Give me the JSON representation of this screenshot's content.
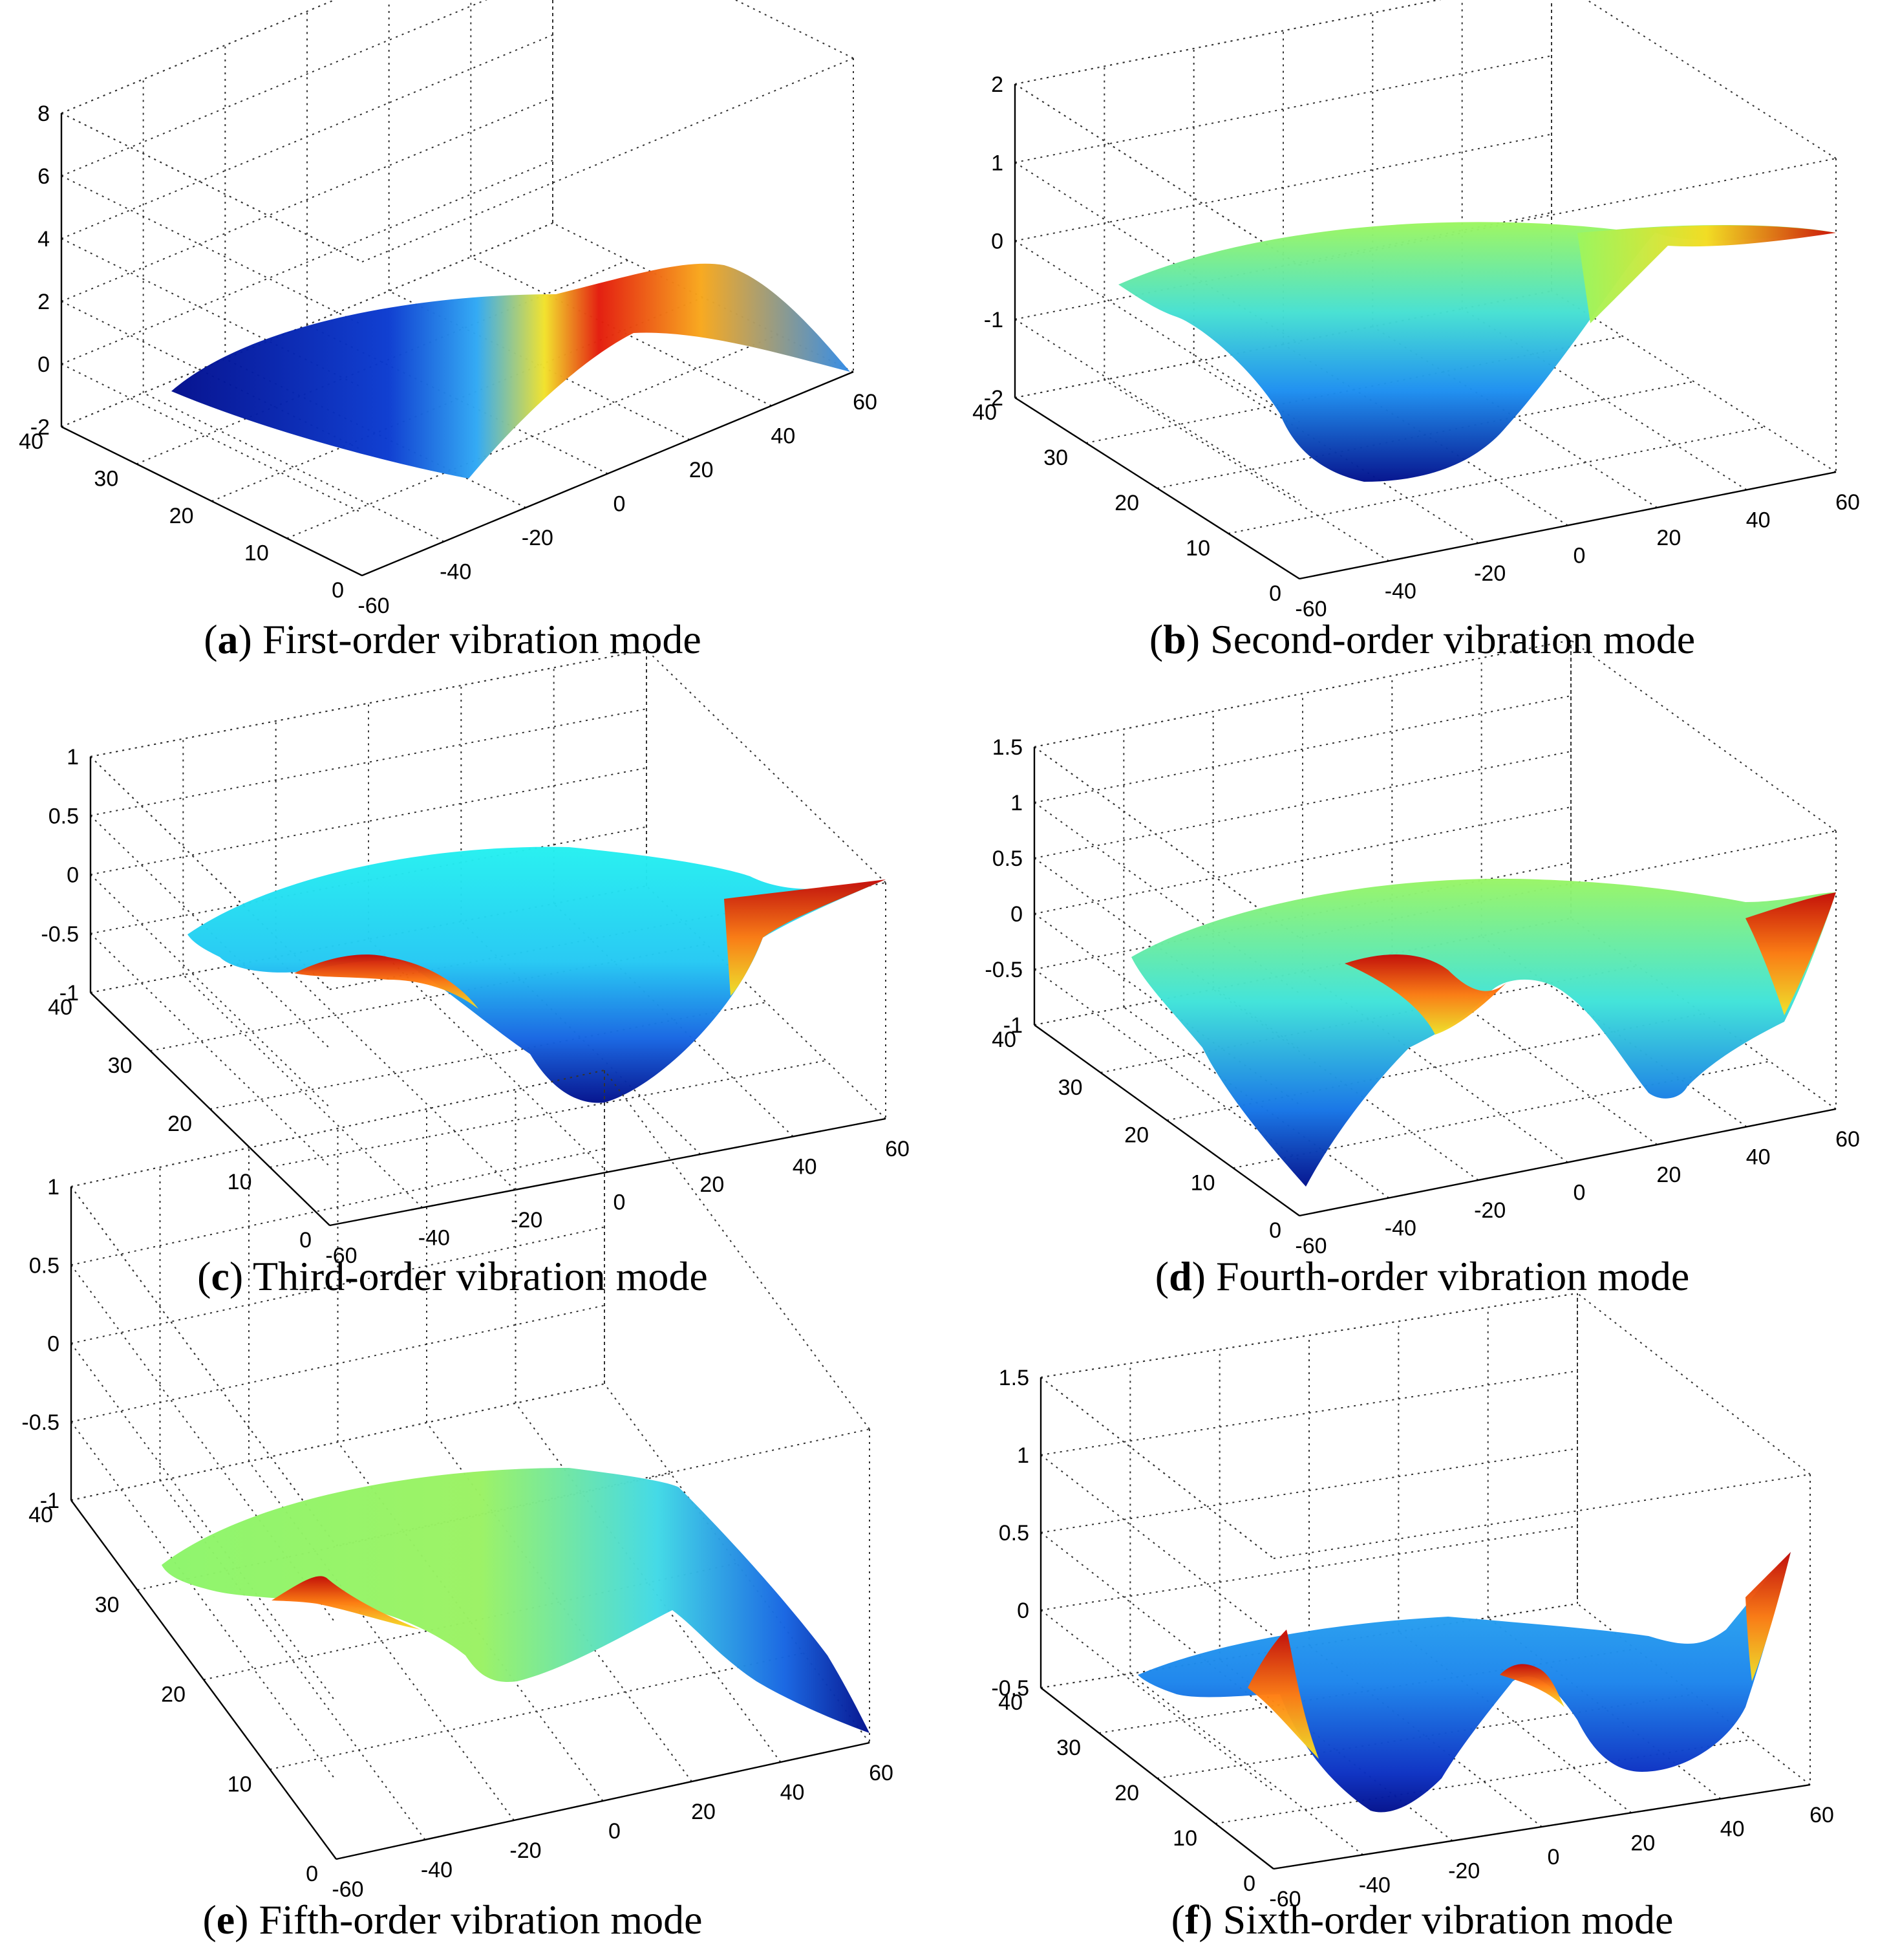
{
  "figure": {
    "panels": [
      {
        "letter": "a",
        "caption": "First-order vibration mode"
      },
      {
        "letter": "b",
        "caption": "Second-order vibration mode"
      },
      {
        "letter": "c",
        "caption": "Third-order vibration mode"
      },
      {
        "letter": "d",
        "caption": "Fourth-order vibration mode"
      },
      {
        "letter": "e",
        "caption": "Fifth-order vibration mode"
      },
      {
        "letter": "f",
        "caption": "Sixth-order vibration mode"
      }
    ]
  },
  "chart_data": [
    {
      "type": "surface3d",
      "title": "(a) First-order vibration mode",
      "xlim": [
        -60,
        60
      ],
      "ylim": [
        0,
        40
      ],
      "zlim": [
        -2,
        8
      ],
      "xticks": [
        "-60",
        "-40",
        "-20",
        "0",
        "20",
        "40",
        "60"
      ],
      "yticks": [
        "0",
        "10",
        "20",
        "30",
        "40"
      ],
      "zticks": [
        "-2",
        "0",
        "2",
        "4",
        "6",
        "8"
      ],
      "colormap": "jet",
      "shape": {
        "kind": "wave",
        "z_min": -1.6,
        "z_max": 2.6,
        "low_side": "negative x",
        "high_side": "positive x"
      }
    },
    {
      "type": "surface3d",
      "title": "(b) Second-order vibration mode",
      "xlim": [
        -60,
        60
      ],
      "ylim": [
        0,
        40
      ],
      "zlim": [
        -2,
        2
      ],
      "xticks": [
        "-60",
        "-40",
        "-20",
        "0",
        "20",
        "40",
        "60"
      ],
      "yticks": [
        "0",
        "10",
        "20",
        "30",
        "40"
      ],
      "zticks": [
        "-2",
        "-1",
        "0",
        "1",
        "2"
      ],
      "colormap": "jet",
      "shape": {
        "kind": "single trough",
        "z_min": -2.0,
        "z_max": 0.3,
        "trough_x": -10
      }
    },
    {
      "type": "surface3d",
      "title": "(c) Third-order vibration mode",
      "xlim": [
        -60,
        60
      ],
      "ylim": [
        0,
        40
      ],
      "zlim": [
        -1,
        1
      ],
      "xticks": [
        "-60",
        "-40",
        "-20",
        "0",
        "20",
        "40",
        "60"
      ],
      "yticks": [
        "0",
        "10",
        "20",
        "30",
        "40"
      ],
      "zticks": [
        "-1",
        "-0.5",
        "0",
        "0.5",
        "1"
      ],
      "colormap": "jet",
      "shape": {
        "kind": "trough with rim peaks",
        "z_min": -1.0,
        "z_max": 0.3,
        "trough_x": 0
      }
    },
    {
      "type": "surface3d",
      "title": "(d) Fourth-order vibration mode",
      "xlim": [
        -60,
        60
      ],
      "ylim": [
        0,
        40
      ],
      "zlim": [
        -1,
        1.5
      ],
      "xticks": [
        "-60",
        "-40",
        "-20",
        "0",
        "20",
        "40",
        "60"
      ],
      "yticks": [
        "0",
        "10",
        "20",
        "30",
        "40"
      ],
      "zticks": [
        "-1",
        "-0.5",
        "0",
        "0.5",
        "1",
        "1.5"
      ],
      "colormap": "jet",
      "shape": {
        "kind": "double trough",
        "z_min": -1.0,
        "z_max": 0.3,
        "trough_x": [
          -55,
          20
        ]
      }
    },
    {
      "type": "surface3d",
      "title": "(e) Fifth-order vibration mode",
      "xlim": [
        -60,
        60
      ],
      "ylim": [
        0,
        40
      ],
      "zlim": [
        -1,
        1
      ],
      "xticks": [
        "-60",
        "-40",
        "-20",
        "0",
        "20",
        "40",
        "60"
      ],
      "yticks": [
        "0",
        "10",
        "20",
        "30",
        "40"
      ],
      "zticks": [
        "-1",
        "-0.5",
        "0",
        "0.5",
        "1"
      ],
      "colormap": "jet",
      "shape": {
        "kind": "rim wave",
        "z_min": -1.0,
        "z_max": 0.3,
        "trough_x": 60
      }
    },
    {
      "type": "surface3d",
      "title": "(f) Sixth-order vibration mode",
      "xlim": [
        -60,
        60
      ],
      "ylim": [
        0,
        40
      ],
      "zlim": [
        -0.5,
        1.5
      ],
      "xticks": [
        "-60",
        "-40",
        "-20",
        "0",
        "20",
        "40",
        "60"
      ],
      "yticks": [
        "0",
        "10",
        "20",
        "30",
        "40"
      ],
      "zticks": [
        "-0.5",
        "0",
        "0.5",
        "1",
        "1.5"
      ],
      "colormap": "jet",
      "shape": {
        "kind": "double trough",
        "z_min": -0.5,
        "z_max": 0.6,
        "trough_x": [
          -35,
          20
        ]
      }
    }
  ]
}
